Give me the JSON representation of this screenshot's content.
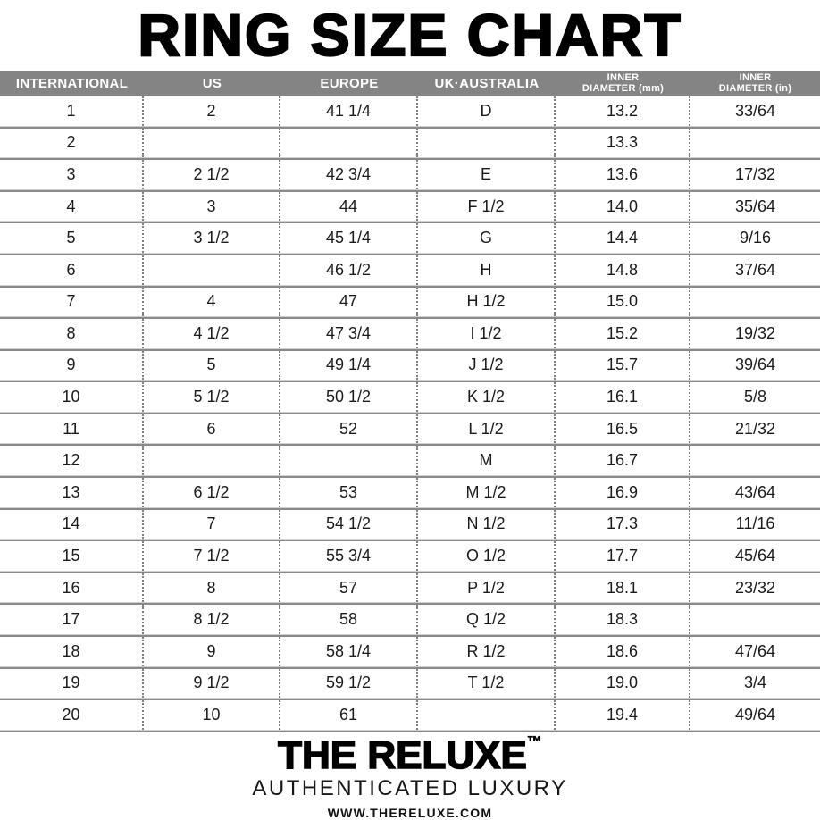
{
  "title": "RING SIZE CHART",
  "table": {
    "columns": [
      "INTERNATIONAL",
      "US",
      "EUROPE",
      "UK·AUSTRALIA",
      "INNER\nDIAMETER (mm)",
      "INNER\nDIAMETER (in)"
    ],
    "rows": [
      [
        "1",
        "2",
        "41 1/4",
        "D",
        "13.2",
        "33/64"
      ],
      [
        "2",
        "",
        "",
        "",
        "13.3",
        ""
      ],
      [
        "3",
        "2 1/2",
        "42 3/4",
        "E",
        "13.6",
        "17/32"
      ],
      [
        "4",
        "3",
        "44",
        "F 1/2",
        "14.0",
        "35/64"
      ],
      [
        "5",
        "3 1/2",
        "45 1/4",
        "G",
        "14.4",
        "9/16"
      ],
      [
        "6",
        "",
        "46 1/2",
        "H",
        "14.8",
        "37/64"
      ],
      [
        "7",
        "4",
        "47",
        "H 1/2",
        "15.0",
        ""
      ],
      [
        "8",
        "4 1/2",
        "47 3/4",
        "I 1/2",
        "15.2",
        "19/32"
      ],
      [
        "9",
        "5",
        "49 1/4",
        "J 1/2",
        "15.7",
        "39/64"
      ],
      [
        "10",
        "5 1/2",
        "50 1/2",
        "K 1/2",
        "16.1",
        "5/8"
      ],
      [
        "11",
        "6",
        "52",
        "L 1/2",
        "16.5",
        "21/32"
      ],
      [
        "12",
        "",
        "",
        "M",
        "16.7",
        ""
      ],
      [
        "13",
        "6 1/2",
        "53",
        "M 1/2",
        "16.9",
        "43/64"
      ],
      [
        "14",
        "7",
        "54 1/2",
        "N 1/2",
        "17.3",
        "11/16"
      ],
      [
        "15",
        "7 1/2",
        "55 3/4",
        "O 1/2",
        "17.7",
        "45/64"
      ],
      [
        "16",
        "8",
        "57",
        "P 1/2",
        "18.1",
        "23/32"
      ],
      [
        "17",
        "8 1/2",
        "58",
        "Q 1/2",
        "18.3",
        ""
      ],
      [
        "18",
        "9",
        "58 1/4",
        "R 1/2",
        "18.6",
        "47/64"
      ],
      [
        "19",
        "9 1/2",
        "59 1/2",
        "T 1/2",
        "19.0",
        "3/4"
      ],
      [
        "20",
        "10",
        "61",
        "",
        "19.4",
        "49/64"
      ]
    ]
  },
  "footer": {
    "brand": "THE RELUXE",
    "tm": "™",
    "tagline": "AUTHENTICATED LUXURY",
    "website": "WWW.THERELUXE.COM"
  },
  "colors": {
    "title": "#000000",
    "header_bg": "#848484",
    "header_text": "#ffffff",
    "text": "#1a1a1a",
    "dots": "#7f7f7f",
    "line_dark": "#8a8a8a",
    "line_light": "#cfcfcf"
  }
}
